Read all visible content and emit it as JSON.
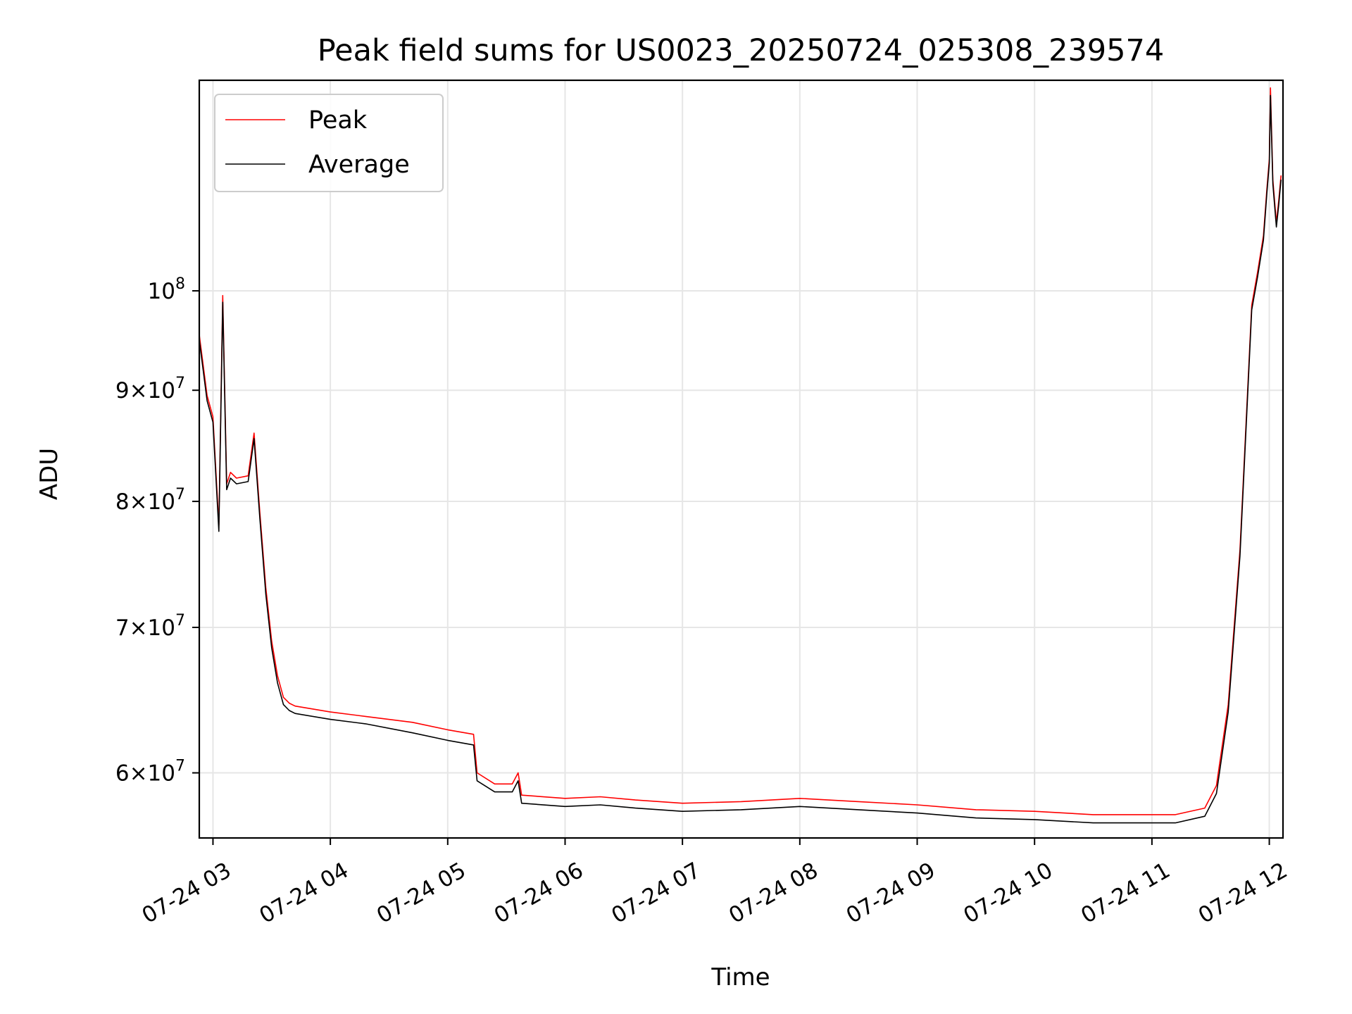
{
  "chart_data": {
    "type": "line",
    "title": "Peak field sums for US0023_20250724_025308_239574",
    "xlabel": "Time",
    "ylabel": "ADU",
    "x_tick_labels": [
      "07-24 03",
      "07-24 04",
      "07-24 05",
      "07-24 06",
      "07-24 07",
      "07-24 08",
      "07-24 09",
      "07-24 10",
      "07-24 11",
      "07-24 12"
    ],
    "y_tick_labels": [
      {
        "value": 60000000,
        "mantissa": "6",
        "exponent": "7"
      },
      {
        "value": 70000000,
        "mantissa": "7",
        "exponent": "7"
      },
      {
        "value": 80000000,
        "mantissa": "8",
        "exponent": "7"
      },
      {
        "value": 90000000,
        "mantissa": "9",
        "exponent": "7"
      },
      {
        "value": 100000000,
        "mantissa": "",
        "exponent": "8"
      }
    ],
    "y_scale": "log",
    "xlim": [
      "2025-07-24 02:53",
      "2025-07-24 12:07"
    ],
    "ylim": [
      56000000,
      125000000
    ],
    "grid": true,
    "legend_position": "top-left",
    "x_hours": [
      2.883,
      2.95,
      3.0,
      3.05,
      3.083,
      3.117,
      3.15,
      3.2,
      3.3,
      3.35,
      3.4,
      3.45,
      3.5,
      3.55,
      3.6,
      3.65,
      3.7,
      4.0,
      4.3,
      4.7,
      5.0,
      5.22,
      5.25,
      5.4,
      5.55,
      5.6,
      5.63,
      6.0,
      6.3,
      6.6,
      7.0,
      7.5,
      8.0,
      8.5,
      9.0,
      9.5,
      10.0,
      10.5,
      10.9,
      11.2,
      11.45,
      11.55,
      11.65,
      11.75,
      11.85,
      11.9,
      11.95,
      11.98,
      12.0,
      12.01,
      12.03,
      12.06,
      12.08,
      12.1
    ],
    "series": [
      {
        "name": "Peak",
        "color": "#ff0000",
        "values": [
          95500000,
          89500000,
          87500000,
          78000000,
          99500000,
          81500000,
          82500000,
          82000000,
          82200000,
          86000000,
          79000000,
          73000000,
          69000000,
          66500000,
          65000000,
          64600000,
          64400000,
          64000000,
          63700000,
          63300000,
          62800000,
          62500000,
          60000000,
          59300000,
          59300000,
          60000000,
          58600000,
          58400000,
          58500000,
          58300000,
          58100000,
          58200000,
          58400000,
          58200000,
          58000000,
          57700000,
          57600000,
          57400000,
          57400000,
          57400000,
          57800000,
          59200000,
          64500000,
          76000000,
          98500000,
          102000000,
          106000000,
          111500000,
          115000000,
          124000000,
          112500000,
          107500000,
          110000000,
          113000000
        ]
      },
      {
        "name": "Average",
        "color": "#000000",
        "values": [
          95000000,
          89000000,
          87000000,
          77500000,
          98800000,
          81000000,
          82000000,
          81500000,
          81700000,
          85500000,
          78500000,
          72500000,
          68500000,
          66000000,
          64500000,
          64100000,
          63900000,
          63500000,
          63200000,
          62600000,
          62100000,
          61800000,
          59500000,
          58800000,
          58800000,
          59500000,
          58100000,
          57900000,
          58000000,
          57800000,
          57600000,
          57700000,
          57900000,
          57700000,
          57500000,
          57200000,
          57100000,
          56900000,
          56900000,
          56900000,
          57300000,
          58700000,
          64000000,
          75500000,
          98000000,
          101500000,
          105500000,
          111000000,
          114500000,
          123000000,
          112000000,
          107000000,
          109500000,
          112500000
        ]
      }
    ]
  }
}
